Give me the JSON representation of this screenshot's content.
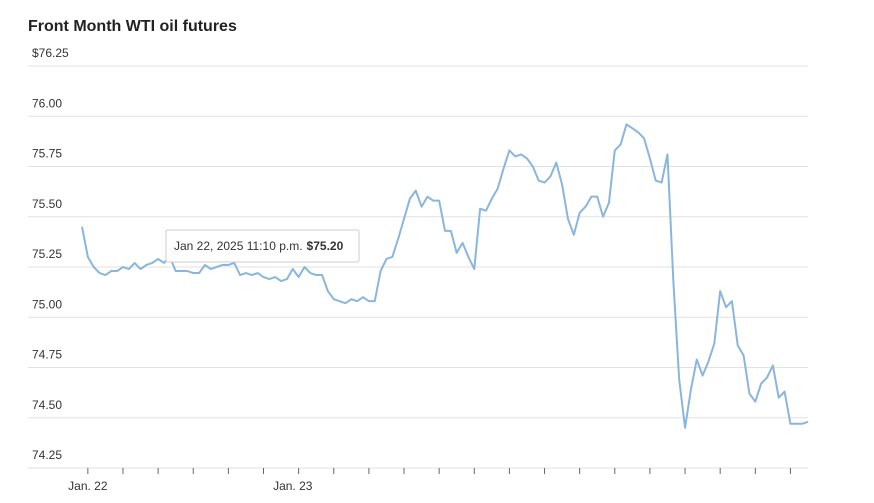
{
  "chart_data": {
    "type": "line",
    "title": "Front Month WTI oil futures",
    "categories": [
      null,
      "Jan. 22",
      null,
      null,
      null,
      null,
      null,
      null,
      null,
      null,
      null,
      null,
      null,
      null,
      null,
      null,
      null,
      null,
      null,
      null,
      null,
      null,
      null,
      null,
      null,
      null,
      null,
      null,
      null,
      null,
      null,
      null,
      null,
      null,
      null,
      null,
      "Jan. 23",
      null,
      null,
      null,
      null,
      null,
      null,
      null,
      null,
      null,
      null,
      null,
      null,
      null,
      null,
      null,
      null,
      null,
      null,
      null,
      null,
      null,
      null,
      null,
      null,
      null,
      null,
      null,
      null,
      null,
      null,
      null,
      null,
      null,
      null,
      null,
      null,
      null,
      null,
      null,
      null,
      null,
      null,
      null,
      null,
      null,
      null,
      null,
      null,
      null,
      null,
      null,
      null,
      null,
      null,
      null,
      null,
      null,
      null,
      null,
      null,
      null,
      null,
      null,
      null,
      null,
      null,
      null,
      null,
      null,
      null,
      null,
      null,
      null,
      null,
      null,
      null,
      null,
      null,
      null,
      null,
      null,
      null,
      null,
      null,
      null,
      null,
      null,
      null
    ],
    "series": [
      {
        "color": "#8ab6dd",
        "values": [
          75.45,
          75.3,
          75.25,
          75.22,
          75.21,
          75.23,
          75.23,
          75.25,
          75.24,
          75.27,
          75.24,
          75.26,
          75.27,
          75.29,
          75.27,
          75.3,
          75.23,
          75.23,
          75.23,
          75.22,
          75.22,
          75.26,
          75.24,
          75.25,
          75.26,
          75.26,
          75.27,
          75.21,
          75.22,
          75.21,
          75.22,
          75.2,
          75.19,
          75.2,
          75.18,
          75.19,
          75.24,
          75.2,
          75.25,
          75.22,
          75.21,
          75.21,
          75.13,
          75.09,
          75.08,
          75.07,
          75.09,
          75.08,
          75.1,
          75.08,
          75.08,
          75.23,
          75.29,
          75.3,
          75.39,
          75.49,
          75.59,
          75.63,
          75.55,
          75.6,
          75.58,
          75.58,
          75.43,
          75.43,
          75.32,
          75.37,
          75.3,
          75.24,
          75.54,
          75.53,
          75.59,
          75.64,
          75.74,
          75.83,
          75.8,
          75.81,
          75.79,
          75.75,
          75.68,
          75.67,
          75.7,
          75.77,
          75.66,
          75.49,
          75.41,
          75.52,
          75.55,
          75.6,
          75.6,
          75.5,
          75.57,
          75.83,
          75.86,
          75.96,
          75.94,
          75.92,
          75.89,
          75.79,
          75.68,
          75.67,
          75.81,
          75.18,
          74.69,
          74.45,
          74.64,
          74.79,
          74.71,
          74.78,
          74.87,
          75.13,
          75.05,
          75.08,
          74.86,
          74.81,
          74.62,
          74.58,
          74.67,
          74.7,
          74.76,
          74.6,
          74.63,
          74.47,
          74.47,
          74.47,
          74.48
        ]
      }
    ],
    "ylim": [
      74.25,
      76.25
    ],
    "yticks": [
      {
        "value": 74.25,
        "label": "74.25"
      },
      {
        "value": 74.5,
        "label": "74.50"
      },
      {
        "value": 74.75,
        "label": "74.75"
      },
      {
        "value": 75,
        "label": "75.00"
      },
      {
        "value": 75.25,
        "label": "75.25"
      },
      {
        "value": 75.5,
        "label": "75.50"
      },
      {
        "value": 75.75,
        "label": "75.75"
      },
      {
        "value": 76,
        "label": "76.00"
      },
      {
        "value": 76.25,
        "label": "$76.25"
      }
    ],
    "grid": true,
    "tooltip": {
      "date": "Jan 22, 2025 11:10 p.m.",
      "price": "$75.20"
    }
  }
}
